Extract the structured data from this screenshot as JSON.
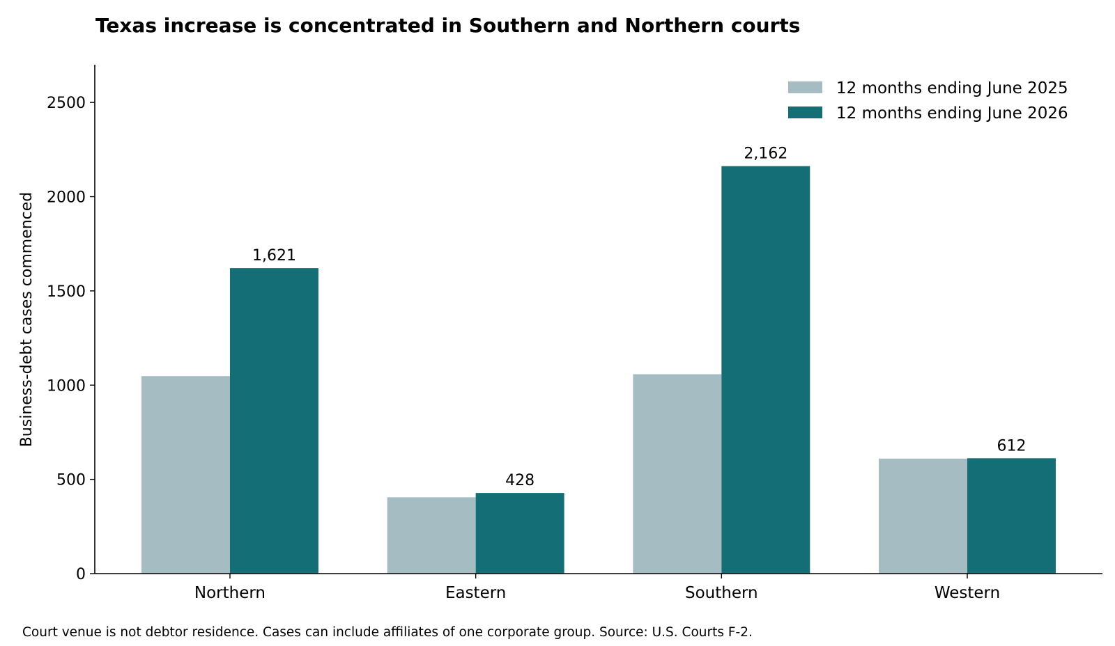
{
  "chart_data": {
    "type": "bar",
    "title": "Texas increase is concentrated in Southern and Northern courts",
    "xlabel": "",
    "ylabel": "Business-debt cases commenced",
    "categories": [
      "Northern",
      "Eastern",
      "Southern",
      "Western"
    ],
    "series": [
      {
        "name": "12 months ending June 2025",
        "values": [
          1048,
          405,
          1058,
          610
        ],
        "color": "#a5bcc3",
        "labels": [
          "",
          "",
          "",
          ""
        ]
      },
      {
        "name": "12 months ending June 2026",
        "values": [
          1621,
          428,
          2162,
          612
        ],
        "color": "#136e75",
        "labels": [
          "1,621",
          "428",
          "2,162",
          "612"
        ]
      }
    ],
    "ylim": [
      0,
      2700
    ],
    "yticks": [
      "0",
      "500",
      "1000",
      "1500",
      "2000",
      "2500"
    ],
    "grid": false,
    "legend": "top-right"
  },
  "note": "Court venue is not debtor residence. Cases can include affiliates of one corporate group. Source: U.S. Courts F-2."
}
